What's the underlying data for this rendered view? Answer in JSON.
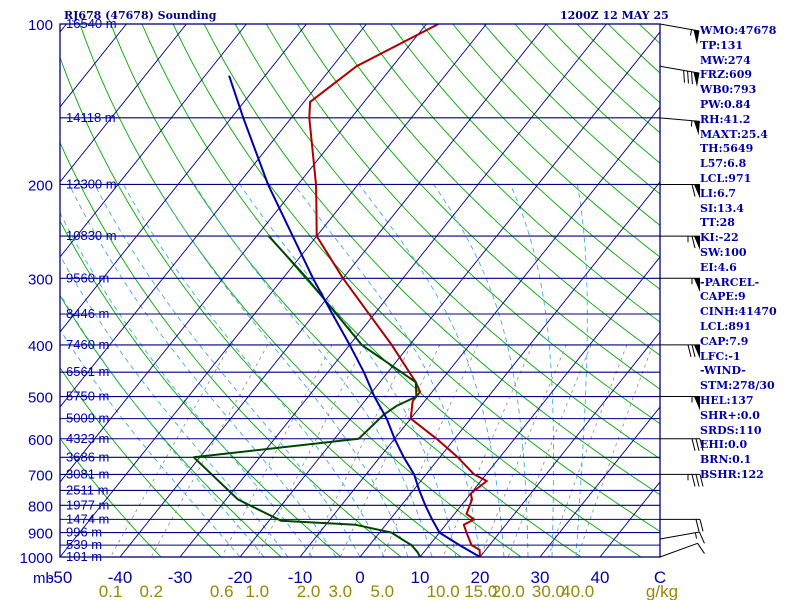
{
  "header": {
    "station": "RJ678 (47678) Sounding",
    "time": "1200Z 12 MAY 25"
  },
  "indices": [
    "WMO:47678",
    "TP:131",
    "MW:274",
    "FRZ:609",
    "WB0:793",
    "PW:0.84",
    "RH:41.2",
    "MAXT:25.4",
    "TH:5649",
    "L57:6.8",
    "LCL:971",
    "LI:6.7",
    "SI:13.4",
    "TT:28",
    "KI:-22",
    "SW:100",
    "EI:4.6",
    "-PARCEL-",
    "CAPE:9",
    "CINH:41470",
    "LCL:891",
    "CAP:7.9",
    "LFC:-1",
    "-WIND-",
    "STM:278/30",
    "HEL:137",
    "SHR+:0.0",
    "SRDS:110",
    "EHI:0.0",
    "BRN:0.1",
    "BSHR:122"
  ],
  "colors": {
    "background": "#ffffff",
    "frame": "#000080",
    "temperature": "#aa0000",
    "dewpoint": "#004400",
    "parcel": "#0000aa",
    "dry_adiabat": "#00aa00",
    "moist_adiabat": "#44aadd",
    "mixing_ratio": "#888888",
    "isotherm": "#000080",
    "text": "#0000aa",
    "mixing_label": "#998800",
    "wind_barb": "#000000"
  },
  "chart_data": {
    "type": "skew-t",
    "pressure_axis": {
      "scale": "log",
      "range_hPa": [
        1000,
        100
      ],
      "ticks": [
        100,
        200,
        300,
        400,
        500,
        600,
        700,
        800,
        900,
        1000
      ]
    },
    "temperature_axis": {
      "unit": "C",
      "range": [
        -50,
        50
      ],
      "tick_labels": [
        "-50",
        "-40",
        "-30",
        "-20",
        "-10",
        "0",
        "10",
        "20",
        "30",
        "40",
        "C"
      ],
      "unit_prefix": "mb"
    },
    "height_labels": [
      {
        "p": 100,
        "label": "16540 m"
      },
      {
        "p": 150,
        "label": "14118 m"
      },
      {
        "p": 200,
        "label": "12300 m"
      },
      {
        "p": 250,
        "label": "10830 m"
      },
      {
        "p": 300,
        "label": "9560 m"
      },
      {
        "p": 350,
        "label": "8446 m"
      },
      {
        "p": 400,
        "label": "7460 m"
      },
      {
        "p": 450,
        "label": "6561 m"
      },
      {
        "p": 500,
        "label": "5750 m"
      },
      {
        "p": 550,
        "label": "5009 m"
      },
      {
        "p": 600,
        "label": "4323 m"
      },
      {
        "p": 650,
        "label": "3686 m"
      },
      {
        "p": 700,
        "label": "3081 m"
      },
      {
        "p": 750,
        "label": "2511 m"
      },
      {
        "p": 800,
        "label": "1977 m"
      },
      {
        "p": 850,
        "label": "1474 m"
      },
      {
        "p": 900,
        "label": "996 m"
      },
      {
        "p": 950,
        "label": "539 m"
      },
      {
        "p": 1000,
        "label": "101 m"
      }
    ],
    "mixing_ratio_labels": [
      "0.1",
      "0.2",
      "0.6",
      "1.0",
      "2.0",
      "3.0",
      "5.0",
      "10.0",
      "15.0",
      "20.0",
      "30.0",
      "40.0",
      "g/kg"
    ],
    "mixing_ratio_values": [
      0.1,
      0.2,
      0.6,
      1.0,
      2.0,
      3.0,
      5.0,
      10.0,
      15.0,
      20.0,
      30.0,
      40.0
    ],
    "series": [
      {
        "kind": "temperature",
        "points": [
          {
            "p": 1007,
            "t": 20.5
          },
          {
            "p": 1000,
            "t": 20
          },
          {
            "p": 970,
            "t": 19
          },
          {
            "p": 950,
            "t": 17
          },
          {
            "p": 900,
            "t": 14.5
          },
          {
            "p": 870,
            "t": 13
          },
          {
            "p": 850,
            "t": 14
          },
          {
            "p": 830,
            "t": 12
          },
          {
            "p": 780,
            "t": 11
          },
          {
            "p": 760,
            "t": 10
          },
          {
            "p": 720,
            "t": 11
          },
          {
            "p": 700,
            "t": 8
          },
          {
            "p": 650,
            "t": 3
          },
          {
            "p": 600,
            "t": -3
          },
          {
            "p": 550,
            "t": -10
          },
          {
            "p": 510,
            "t": -12
          },
          {
            "p": 490,
            "t": -12
          },
          {
            "p": 470,
            "t": -14
          },
          {
            "p": 400,
            "t": -23
          },
          {
            "p": 300,
            "t": -40
          },
          {
            "p": 250,
            "t": -50
          },
          {
            "p": 220,
            "t": -54
          },
          {
            "p": 200,
            "t": -57
          },
          {
            "p": 150,
            "t": -67
          },
          {
            "p": 140,
            "t": -69
          },
          {
            "p": 120,
            "t": -66
          },
          {
            "p": 100,
            "t": -58
          }
        ]
      },
      {
        "kind": "dewpoint",
        "points": [
          {
            "p": 1005,
            "t": 12
          },
          {
            "p": 1000,
            "t": 10
          },
          {
            "p": 980,
            "t": 9
          },
          {
            "p": 950,
            "t": 7
          },
          {
            "p": 930,
            "t": 5
          },
          {
            "p": 900,
            "t": 2
          },
          {
            "p": 870,
            "t": -5
          },
          {
            "p": 855,
            "t": -18
          },
          {
            "p": 780,
            "t": -28
          },
          {
            "p": 650,
            "t": -41
          },
          {
            "p": 600,
            "t": -16
          },
          {
            "p": 540,
            "t": -15
          },
          {
            "p": 520,
            "t": -14
          },
          {
            "p": 500,
            "t": -12
          },
          {
            "p": 470,
            "t": -14
          },
          {
            "p": 400,
            "t": -28
          },
          {
            "p": 300,
            "t": -46
          },
          {
            "p": 250,
            "t": -58
          }
        ]
      },
      {
        "kind": "parcel",
        "points": [
          {
            "p": 1000,
            "t": 20
          },
          {
            "p": 950,
            "t": 15
          },
          {
            "p": 900,
            "t": 10
          },
          {
            "p": 850,
            "t": 7
          },
          {
            "p": 800,
            "t": 4
          },
          {
            "p": 750,
            "t": 1
          },
          {
            "p": 700,
            "t": -2
          },
          {
            "p": 650,
            "t": -6
          },
          {
            "p": 600,
            "t": -10
          },
          {
            "p": 550,
            "t": -14
          },
          {
            "p": 500,
            "t": -19
          },
          {
            "p": 450,
            "t": -24
          },
          {
            "p": 400,
            "t": -30
          },
          {
            "p": 350,
            "t": -37
          },
          {
            "p": 300,
            "t": -45
          },
          {
            "p": 250,
            "t": -54
          },
          {
            "p": 200,
            "t": -65
          },
          {
            "p": 150,
            "t": -78
          },
          {
            "p": 125,
            "t": -86
          }
        ]
      }
    ],
    "wind_barbs": [
      {
        "p": 1000,
        "dir": 250,
        "spd": 10
      },
      {
        "p": 925,
        "dir": 260,
        "spd": 15
      },
      {
        "p": 850,
        "dir": 270,
        "spd": 20
      },
      {
        "p": 700,
        "dir": 270,
        "spd": 35
      },
      {
        "p": 600,
        "dir": 270,
        "spd": 30
      },
      {
        "p": 500,
        "dir": 270,
        "spd": 55
      },
      {
        "p": 400,
        "dir": 270,
        "spd": 70
      },
      {
        "p": 300,
        "dir": 270,
        "spd": 55
      },
      {
        "p": 250,
        "dir": 270,
        "spd": 65
      },
      {
        "p": 200,
        "dir": 270,
        "spd": 60
      },
      {
        "p": 150,
        "dir": 275,
        "spd": 55
      },
      {
        "p": 120,
        "dir": 280,
        "spd": 80
      },
      {
        "p": 100,
        "dir": 280,
        "spd": 55
      }
    ]
  }
}
